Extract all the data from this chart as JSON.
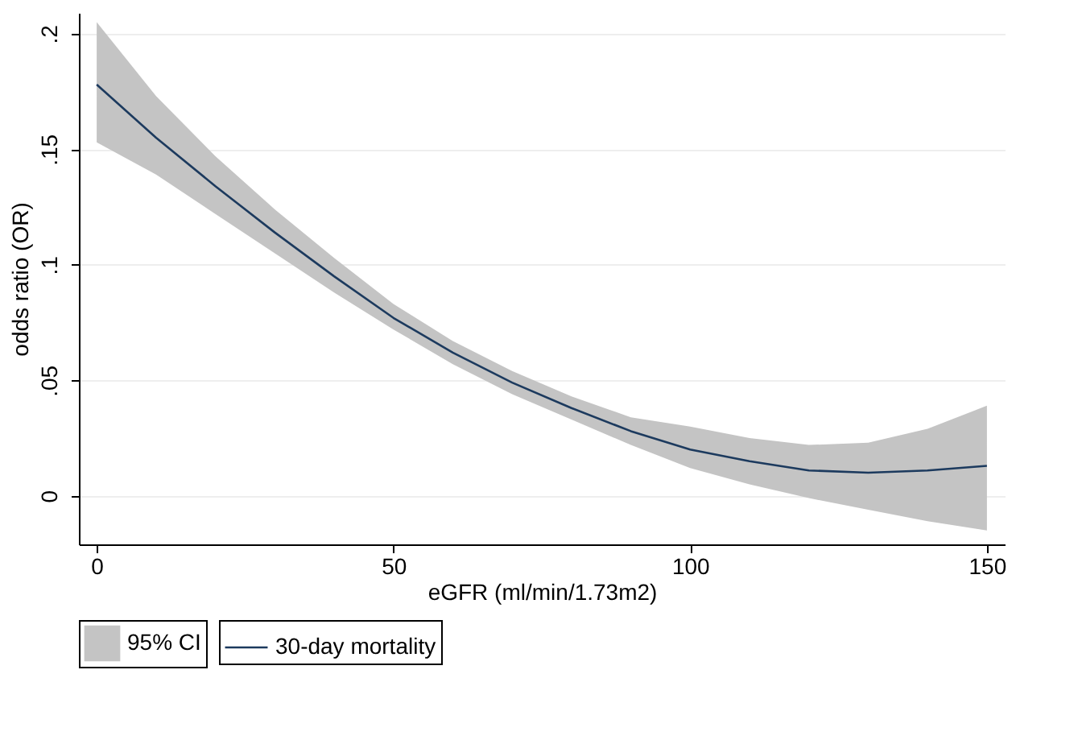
{
  "chart_data": {
    "type": "line",
    "xlabel": "eGFR (ml/min/1.73m2)",
    "ylabel": "odds ratio (OR)",
    "annotations": [
      "95% CI"
    ],
    "x": [
      0,
      10,
      20,
      30,
      40,
      50,
      60,
      70,
      80,
      90,
      100,
      110,
      120,
      130,
      140,
      150
    ],
    "series": [
      {
        "name": "30-day mortality",
        "color": "#1c3a5e",
        "values": [
          0.178,
          0.155,
          0.134,
          0.114,
          0.095,
          0.077,
          0.062,
          0.049,
          0.038,
          0.028,
          0.02,
          0.015,
          0.011,
          0.01,
          0.011,
          0.013
        ],
        "lower": [
          0.153,
          0.139,
          0.122,
          0.105,
          0.088,
          0.072,
          0.057,
          0.044,
          0.033,
          0.022,
          0.012,
          0.005,
          -0.001,
          -0.006,
          -0.011,
          -0.015
        ],
        "upper": [
          0.205,
          0.173,
          0.147,
          0.124,
          0.103,
          0.083,
          0.067,
          0.054,
          0.043,
          0.034,
          0.03,
          0.025,
          0.022,
          0.023,
          0.029,
          0.039
        ]
      }
    ],
    "xlim": [
      -3,
      153
    ],
    "xticks": [
      0,
      50,
      100,
      150
    ],
    "ylim": [
      -0.021,
      0.209
    ],
    "yticks": [
      {
        "value": 0,
        "label": "0"
      },
      {
        "value": 0.05,
        "label": ".05"
      },
      {
        "value": 0.1,
        "label": ".1"
      },
      {
        "value": 0.15,
        "label": ".15"
      },
      {
        "value": 0.2,
        "label": ".2"
      }
    ],
    "grid": "y",
    "legend": "bottom",
    "marker": "none",
    "line_style": "solid"
  }
}
